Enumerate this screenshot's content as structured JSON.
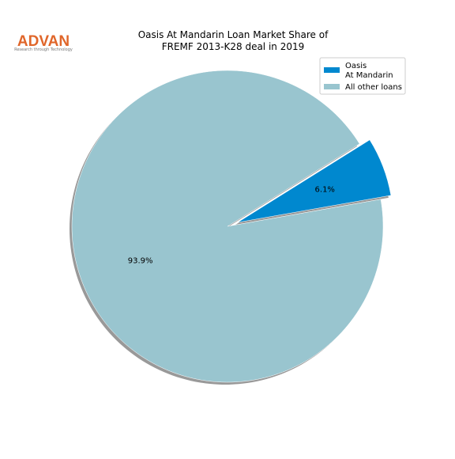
{
  "logo": {
    "name": "ADVAN",
    "tagline": "Research through Technology"
  },
  "chart_data": {
    "type": "pie",
    "title": "Oasis At Mandarin Loan Market Share of\nFREMF 2013-K28 deal in 2019",
    "categories": [
      "Oasis\nAt Mandarin",
      "All other loans"
    ],
    "values": [
      6.1,
      93.9
    ],
    "value_labels": [
      "6.1%",
      "93.9%"
    ],
    "colors": [
      "#0088cf",
      "#99c5cf"
    ],
    "explode": [
      true,
      false
    ],
    "shadow": true,
    "legend": "upper right"
  }
}
